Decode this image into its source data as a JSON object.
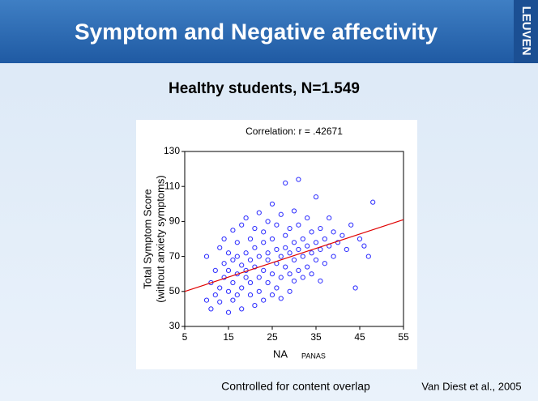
{
  "header": {
    "title": "Symptom and Negative affectivity",
    "logo": "LEUVEN"
  },
  "subtitle": "Healthy students, N=1.549",
  "chart_data": {
    "type": "scatter",
    "title": "Correlation: r = .42671",
    "y_label_lines": [
      "Total Symptom Score",
      "(without anxiety symptoms)"
    ],
    "x_label": "NA",
    "x_label_sub": "PANAS",
    "xlim": [
      5,
      55
    ],
    "xticks": [
      5,
      15,
      25,
      35,
      45,
      55
    ],
    "ylim": [
      30,
      130
    ],
    "yticks": [
      30,
      50,
      70,
      90,
      110,
      130
    ],
    "color": "#2a2aff",
    "x": [
      10,
      10,
      11,
      11,
      12,
      12,
      13,
      13,
      13,
      14,
      14,
      14,
      15,
      15,
      15,
      15,
      16,
      16,
      16,
      16,
      17,
      17,
      17,
      17,
      18,
      18,
      18,
      18,
      19,
      19,
      19,
      19,
      20,
      20,
      20,
      20,
      21,
      21,
      21,
      21,
      22,
      22,
      22,
      22,
      23,
      23,
      23,
      23,
      24,
      24,
      24,
      24,
      25,
      25,
      25,
      25,
      26,
      26,
      26,
      26,
      27,
      27,
      27,
      27,
      28,
      28,
      28,
      28,
      29,
      29,
      29,
      29,
      30,
      30,
      30,
      30,
      31,
      31,
      31,
      31,
      32,
      32,
      32,
      33,
      33,
      33,
      34,
      34,
      34,
      35,
      35,
      35,
      36,
      36,
      36,
      37,
      37,
      38,
      38,
      39,
      39,
      40,
      41,
      42,
      43,
      44,
      45,
      46,
      47,
      48
    ],
    "values": [
      45,
      70,
      55,
      40,
      62,
      48,
      75,
      52,
      44,
      58,
      80,
      66,
      50,
      62,
      72,
      38,
      68,
      55,
      85,
      45,
      60,
      78,
      48,
      70,
      52,
      65,
      88,
      40,
      72,
      58,
      62,
      92,
      48,
      68,
      80,
      55,
      64,
      75,
      42,
      86,
      58,
      70,
      95,
      50,
      62,
      78,
      45,
      84,
      55,
      68,
      90,
      72,
      60,
      80,
      48,
      100,
      66,
      74,
      52,
      88,
      70,
      58,
      94,
      46,
      64,
      82,
      75,
      112,
      60,
      72,
      86,
      50,
      68,
      78,
      56,
      96,
      74,
      62,
      88,
      114,
      70,
      80,
      58,
      76,
      64,
      92,
      72,
      84,
      60,
      78,
      68,
      104,
      74,
      86,
      56,
      80,
      66,
      76,
      92,
      70,
      84,
      78,
      82,
      74,
      88,
      52,
      80,
      76,
      70,
      101
    ],
    "trend_line": {
      "x": [
        5,
        55
      ],
      "values": [
        50,
        91
      ],
      "color": "#e00000"
    }
  },
  "footer": {
    "note": "Controlled for content overlap",
    "citation": "Van Diest et al., 2005"
  }
}
